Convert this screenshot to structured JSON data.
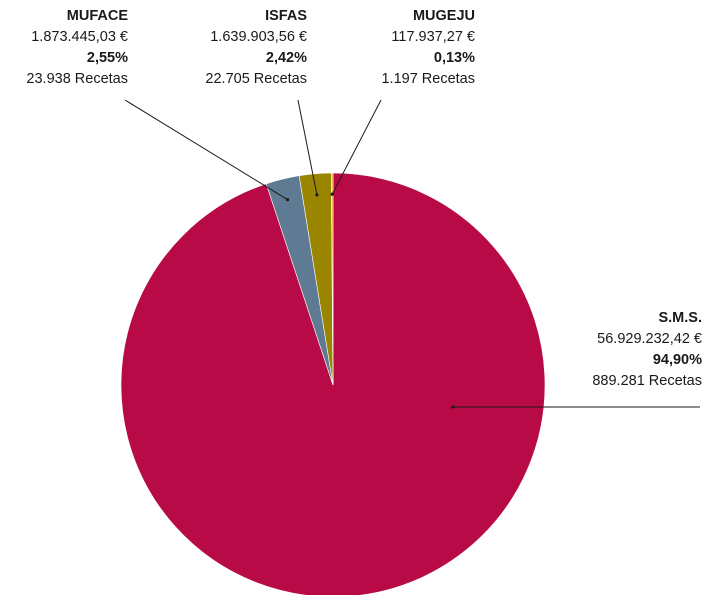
{
  "chart_data": {
    "type": "pie",
    "title": "",
    "slices": [
      {
        "name": "S.M.S.",
        "amount": "56.929.232,42 €",
        "percent_label": "94,90%",
        "percent": 94.9,
        "recipes": "889.281 Recetas",
        "color": "#b80a46"
      },
      {
        "name": "MUFACE",
        "amount": "1.873.445,03 €",
        "percent_label": "2,55%",
        "percent": 2.55,
        "recipes": "23.938 Recetas",
        "color": "#5f7a93"
      },
      {
        "name": "ISFAS",
        "amount": "1.639.903,56 €",
        "percent_label": "2,42%",
        "percent": 2.42,
        "recipes": "22.705 Recetas",
        "color": "#9a8500"
      },
      {
        "name": "MUGEJU",
        "amount": "117.937,27 €",
        "percent_label": "0,13%",
        "percent": 0.13,
        "recipes": "1.197 Recetas",
        "color": "#f0a020"
      }
    ],
    "legend": "none",
    "grid": false
  }
}
